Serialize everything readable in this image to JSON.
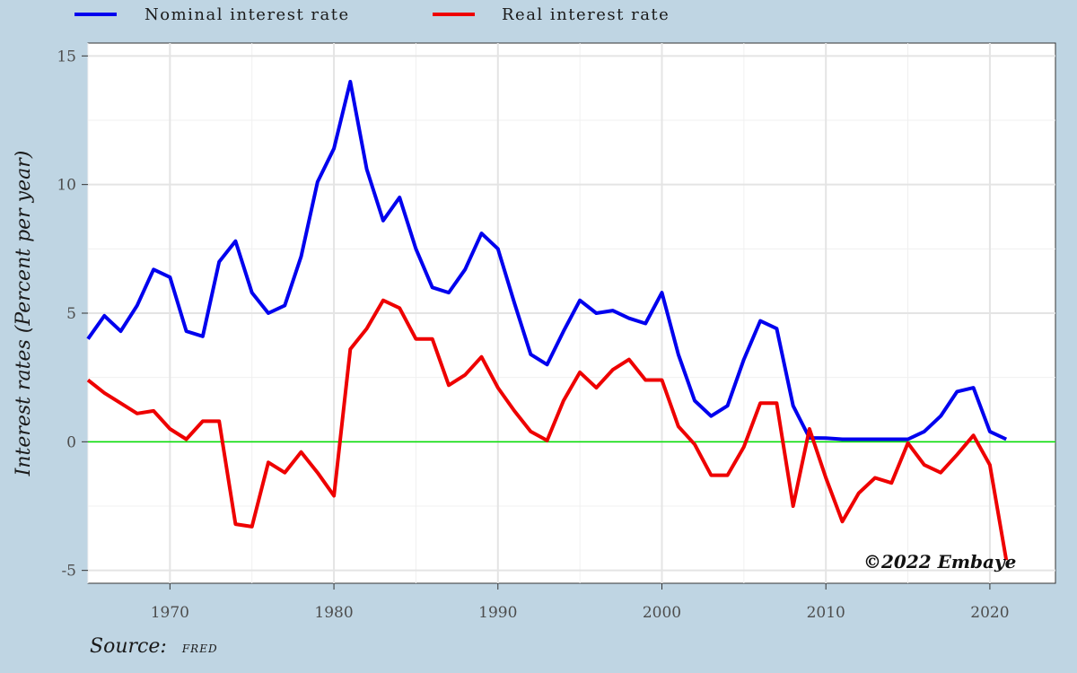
{
  "chart_data": {
    "type": "line",
    "ylabel": "Interest rates (Percent per year)",
    "xlabel": "",
    "xlim": [
      1965,
      2024
    ],
    "ylim": [
      -5.5,
      15.5
    ],
    "xticks": [
      1970,
      1980,
      1990,
      2000,
      2010,
      2020
    ],
    "yticks": [
      -5,
      0,
      5,
      10,
      15
    ],
    "ytick_labels": [
      "-5",
      "0",
      "5",
      "10",
      "15"
    ],
    "xtick_labels": [
      "1970",
      "1980",
      "1990",
      "2000",
      "2010",
      "2020"
    ],
    "grid": true,
    "legend_position": "top",
    "reference_line": {
      "y": 0,
      "color": "#00e000"
    },
    "x": [
      1965,
      1966,
      1967,
      1968,
      1969,
      1970,
      1971,
      1972,
      1973,
      1974,
      1975,
      1976,
      1977,
      1978,
      1979,
      1980,
      1981,
      1982,
      1983,
      1984,
      1985,
      1986,
      1987,
      1988,
      1989,
      1990,
      1991,
      1992,
      1993,
      1994,
      1995,
      1996,
      1997,
      1998,
      1999,
      2000,
      2001,
      2002,
      2003,
      2004,
      2005,
      2006,
      2007,
      2008,
      2009,
      2010,
      2011,
      2012,
      2013,
      2014,
      2015,
      2016,
      2017,
      2018,
      2019,
      2020,
      2021
    ],
    "series": [
      {
        "name": "Nominal interest rate",
        "color": "#0000ee",
        "values": [
          4.0,
          4.9,
          4.3,
          5.3,
          6.7,
          6.4,
          4.3,
          4.1,
          7.0,
          7.8,
          5.8,
          5.0,
          5.3,
          7.2,
          10.1,
          11.4,
          14.0,
          10.6,
          8.6,
          9.5,
          7.5,
          6.0,
          5.8,
          6.7,
          8.1,
          7.5,
          5.4,
          3.4,
          3.0,
          4.3,
          5.5,
          5.0,
          5.1,
          4.8,
          4.6,
          5.8,
          3.4,
          1.6,
          1.0,
          1.4,
          3.2,
          4.7,
          4.4,
          1.4,
          0.15,
          0.14,
          0.1,
          0.1,
          0.1,
          0.1,
          0.1,
          0.4,
          1.0,
          1.95,
          2.1,
          0.4,
          0.1
        ]
      },
      {
        "name": "Real interest rate",
        "color": "#ee0000",
        "values": [
          2.4,
          1.9,
          1.5,
          1.1,
          1.2,
          0.5,
          0.1,
          0.8,
          0.8,
          -3.2,
          -3.3,
          -0.8,
          -1.2,
          -0.4,
          -1.2,
          -2.1,
          3.6,
          4.4,
          5.5,
          5.2,
          4.0,
          4.0,
          2.2,
          2.6,
          3.3,
          2.1,
          1.2,
          0.4,
          0.05,
          1.6,
          2.7,
          2.1,
          2.8,
          3.2,
          2.4,
          2.4,
          0.6,
          -0.1,
          -1.3,
          -1.3,
          -0.2,
          1.5,
          1.5,
          -2.5,
          0.5,
          -1.4,
          -3.1,
          -2.0,
          -1.4,
          -1.6,
          -0.05,
          -0.9,
          -1.2,
          -0.5,
          0.25,
          -0.9,
          -4.6
        ]
      }
    ]
  },
  "caption": {
    "label": "Source:",
    "source": "FRED"
  },
  "watermark": "©2022 Embaye"
}
